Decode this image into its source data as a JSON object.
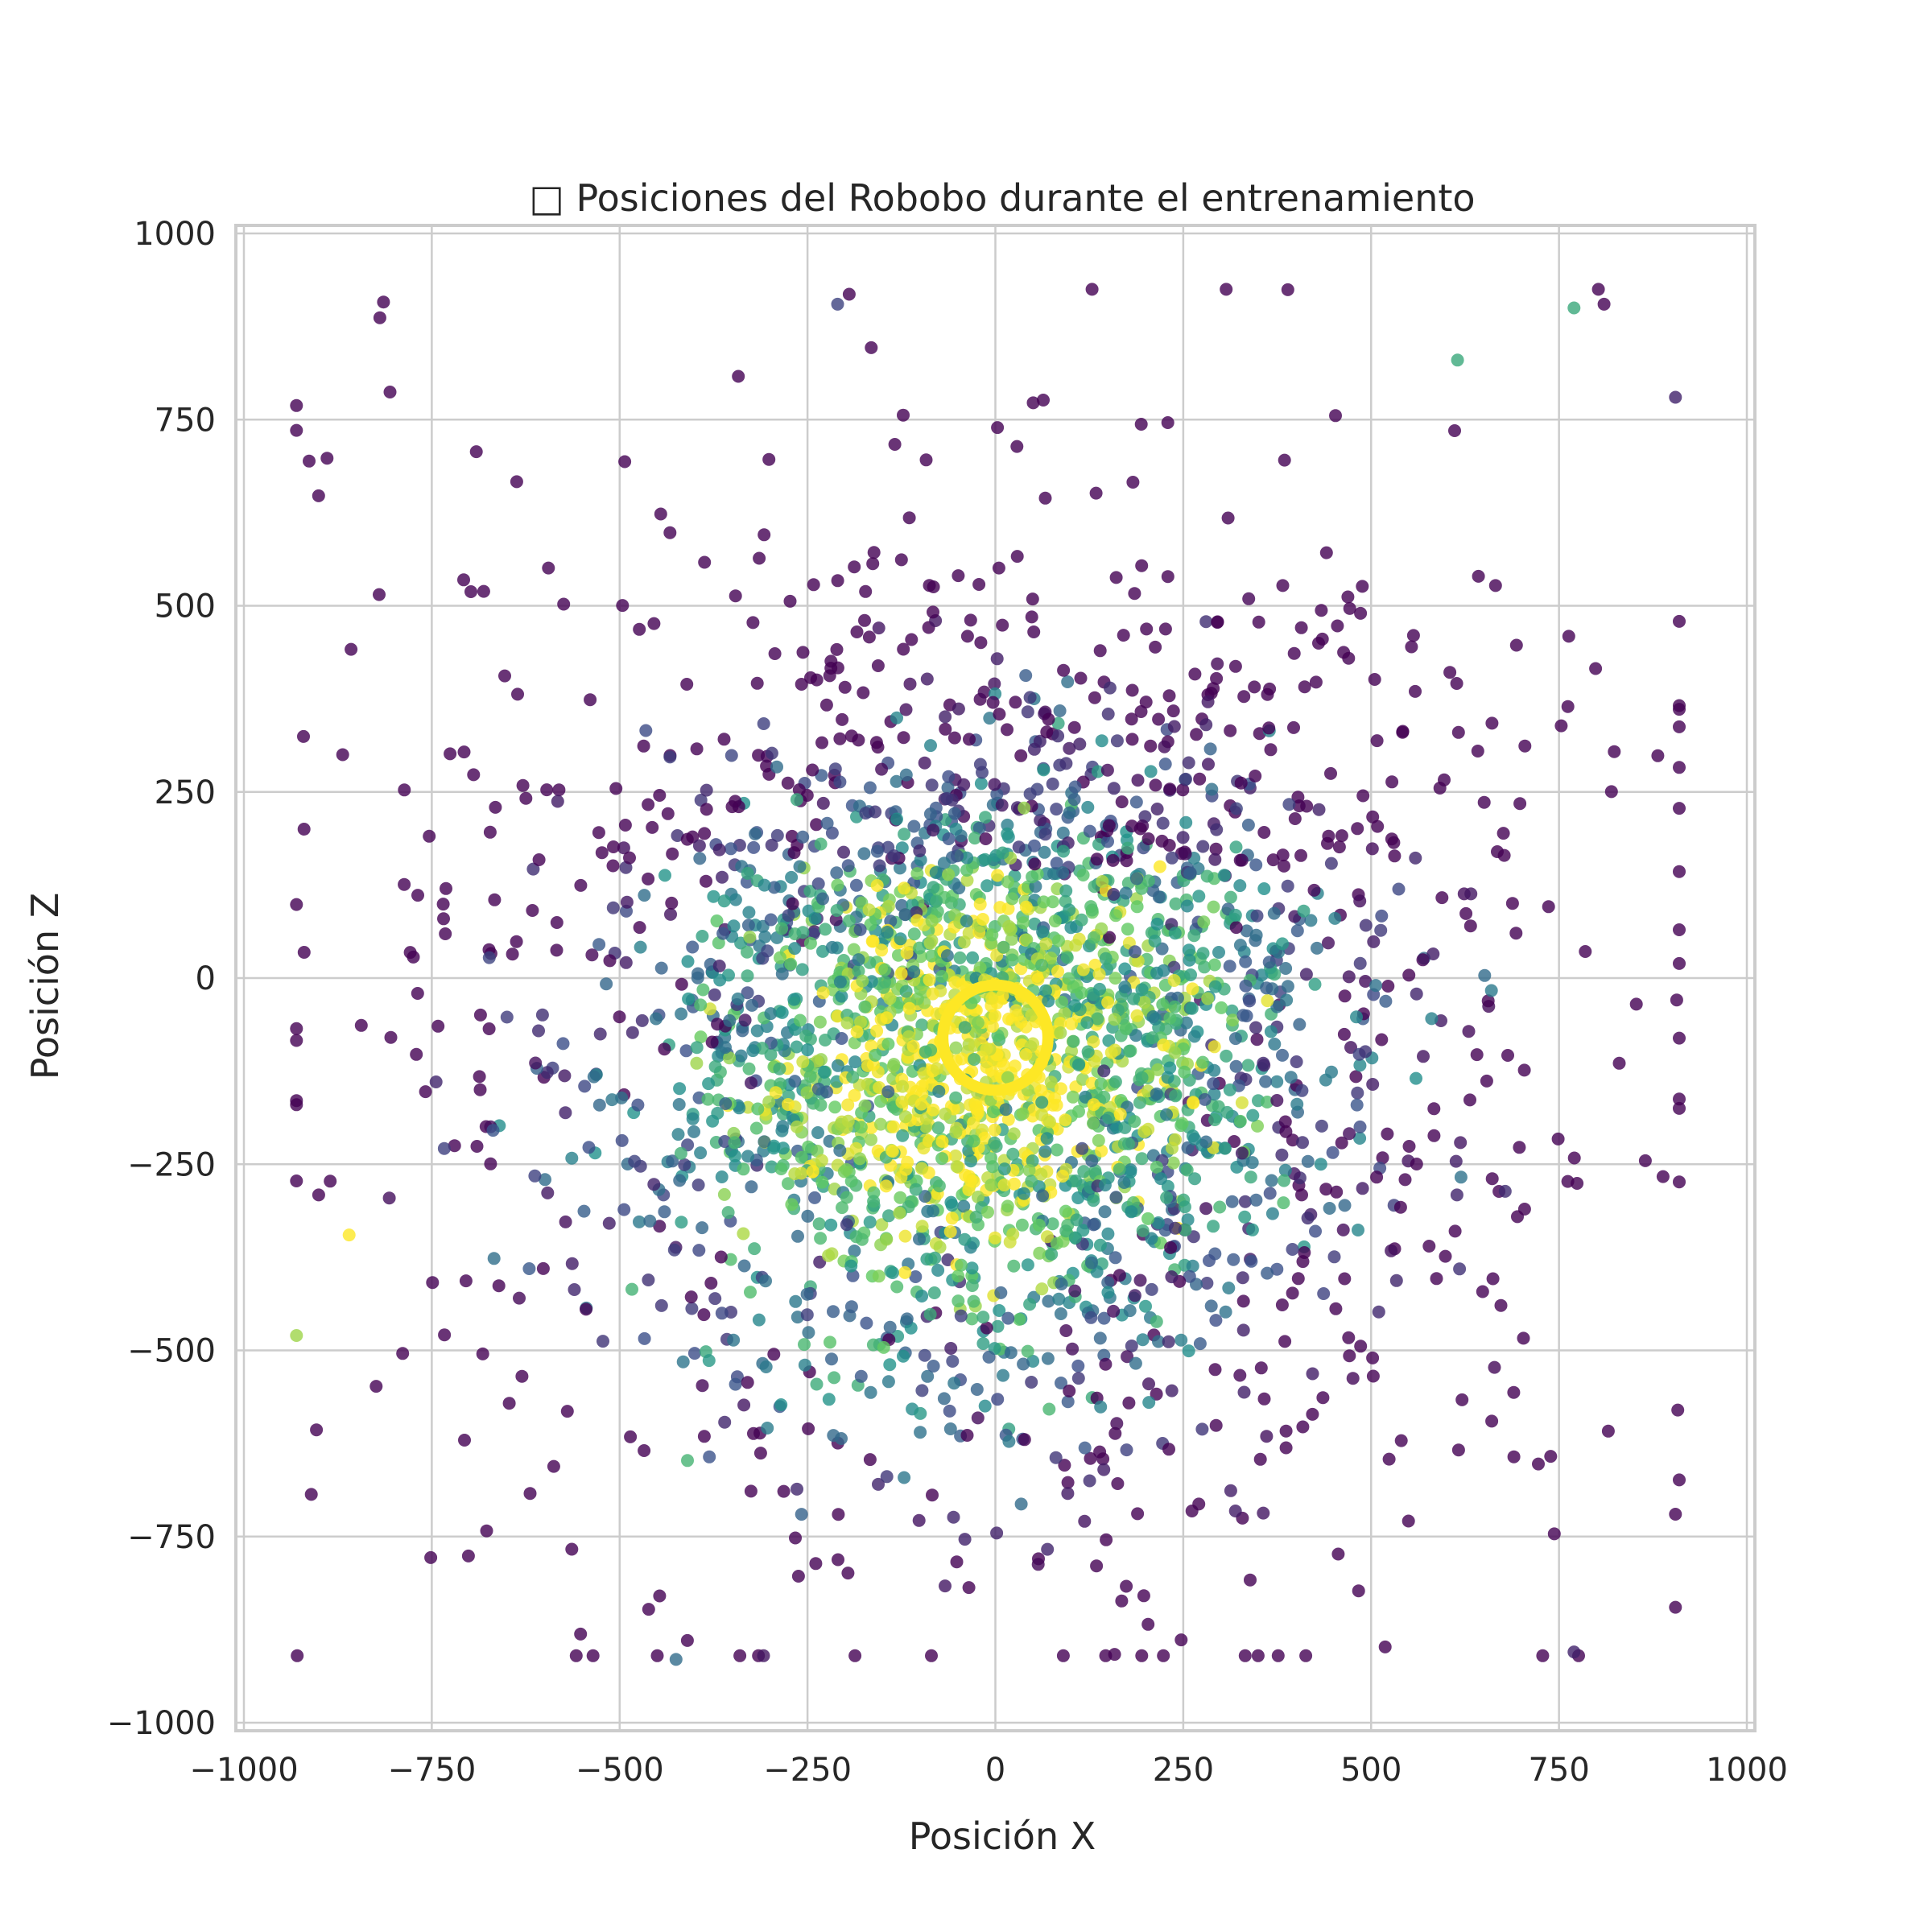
{
  "chart_data": {
    "type": "scatter",
    "title": "□ Posiciones del Robobo durante el entrenamiento",
    "xlabel": "Posición X",
    "ylabel": "Posición Z",
    "xlim": [
      -1000,
      1000
    ],
    "ylim": [
      -1000,
      1000
    ],
    "xticks": [
      -1000,
      -750,
      -500,
      -250,
      0,
      250,
      500,
      750,
      1000
    ],
    "yticks": [
      -1000,
      -750,
      -500,
      -250,
      0,
      250,
      500,
      750,
      1000
    ],
    "xtick_labels": [
      "−1000",
      "−750",
      "−500",
      "−250",
      "0",
      "250",
      "500",
      "750",
      "1000"
    ],
    "ytick_labels": [
      "−1000",
      "−750",
      "−500",
      "−250",
      "0",
      "250",
      "500",
      "750",
      "1000"
    ],
    "grid": true,
    "colormap": "viridis",
    "colormap_stops": [
      "#440154",
      "#3b528b",
      "#21918c",
      "#5ec962",
      "#fde725"
    ],
    "point_count": 3200,
    "cluster_center": [
      0,
      -80
    ],
    "points_sample": [
      {
        "x": -920,
        "y": 200,
        "c": 0.0
      },
      {
        "x": 810,
        "y": 905,
        "c": 0.0
      },
      {
        "x": 770,
        "y": 900,
        "c": 0.6
      },
      {
        "x": 615,
        "y": 830,
        "c": 0.6
      },
      {
        "x": 905,
        "y": 780,
        "c": 0.1
      },
      {
        "x": -210,
        "y": 905,
        "c": 0.2
      },
      {
        "x": -820,
        "y": 515,
        "c": 0.0
      },
      {
        "x": -930,
        "y": -480,
        "c": 0.85
      },
      {
        "x": -860,
        "y": -345,
        "c": 1.0
      },
      {
        "x": 905,
        "y": -720,
        "c": 0.0
      },
      {
        "x": 905,
        "y": -845,
        "c": 0.0
      },
      {
        "x": 770,
        "y": -905,
        "c": 0.1
      },
      {
        "x": -425,
        "y": -915,
        "c": 0.35
      }
    ],
    "annotation_circle": {
      "cx": 0,
      "cy": -80,
      "r": 70,
      "color": "#fde725"
    }
  }
}
